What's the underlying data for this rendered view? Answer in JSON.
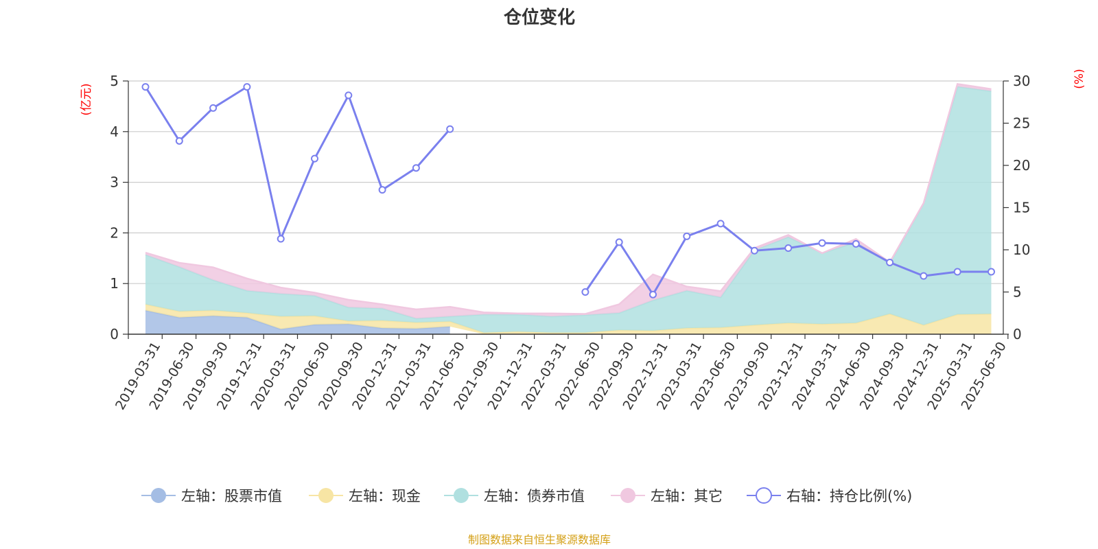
{
  "chart_data": {
    "type": "area",
    "title": "仓位变化",
    "left_unit": "(亿元)",
    "right_unit": "(%)",
    "left_ylim": [
      0,
      5
    ],
    "left_ticks": [
      "0",
      "1",
      "2",
      "3",
      "4",
      "5"
    ],
    "right_ylim": [
      0,
      30
    ],
    "right_ticks": [
      "0",
      "5",
      "10",
      "15",
      "20",
      "25",
      "30"
    ],
    "grid": true,
    "legend_position": "bottom",
    "categories": [
      "2019-03-31",
      "2019-06-30",
      "2019-09-30",
      "2019-12-31",
      "2020-03-31",
      "2020-06-30",
      "2020-09-30",
      "2020-12-31",
      "2021-03-31",
      "2021-06-30",
      "2021-09-30",
      "2021-12-31",
      "2022-03-31",
      "2022-06-30",
      "2022-09-30",
      "2022-12-31",
      "2023-03-31",
      "2023-06-30",
      "2023-09-30",
      "2023-12-31",
      "2024-03-31",
      "2024-06-30",
      "2024-09-30",
      "2024-12-31",
      "2025-03-31",
      "2025-06-30"
    ],
    "series": [
      {
        "name": "左轴：股票市值",
        "axis": "left",
        "kind": "stacked-area",
        "color": "#a4bde4",
        "values": [
          0.47,
          0.33,
          0.36,
          0.33,
          0.1,
          0.19,
          0.2,
          0.12,
          0.11,
          0.15,
          null,
          null,
          null,
          null,
          null,
          null,
          null,
          null,
          null,
          null,
          null,
          null,
          null,
          null,
          null,
          null
        ]
      },
      {
        "name": "左轴：现金",
        "axis": "left",
        "kind": "stacked-area",
        "color": "#f7e5a4",
        "values": [
          0.12,
          0.12,
          0.11,
          0.09,
          0.25,
          0.17,
          0.06,
          0.15,
          0.12,
          0.1,
          0.03,
          0.05,
          0.03,
          0.03,
          0.08,
          0.07,
          0.12,
          0.13,
          0.18,
          0.22,
          0.2,
          0.22,
          0.4,
          0.18,
          0.39,
          0.4
        ]
      },
      {
        "name": "左轴：债券市值",
        "axis": "left",
        "kind": "stacked-area",
        "color": "#b0e0e0",
        "values": [
          0.98,
          0.88,
          0.6,
          0.44,
          0.45,
          0.4,
          0.27,
          0.24,
          0.08,
          0.1,
          0.36,
          0.34,
          0.32,
          0.35,
          0.34,
          0.6,
          0.74,
          0.6,
          1.48,
          1.7,
          1.4,
          1.6,
          1.0,
          2.4,
          4.5,
          4.4
        ]
      },
      {
        "name": "左轴：其它",
        "axis": "left",
        "kind": "stacked-area",
        "color": "#f0c8e0",
        "values": [
          0.04,
          0.08,
          0.25,
          0.24,
          0.12,
          0.06,
          0.15,
          0.08,
          0.18,
          0.19,
          0.04,
          0.02,
          0.06,
          0.02,
          0.17,
          0.51,
          0.08,
          0.12,
          0.04,
          0.04,
          0.0,
          0.06,
          0.02,
          0.01,
          0.05,
          0.04
        ]
      },
      {
        "name": "右轴：持仓比例(%)",
        "axis": "right",
        "kind": "line",
        "color": "#7a80ee",
        "values": [
          29.3,
          22.9,
          26.8,
          29.3,
          11.3,
          20.8,
          28.3,
          17.1,
          19.7,
          24.3,
          null,
          null,
          null,
          5.0,
          10.9,
          4.7,
          11.6,
          13.1,
          9.9,
          10.2,
          10.8,
          10.7,
          8.5,
          6.9,
          7.4,
          7.4
        ]
      }
    ]
  },
  "footer": {
    "text": "制图数据来自恒生聚源数据库",
    "color": "#d4a017"
  }
}
